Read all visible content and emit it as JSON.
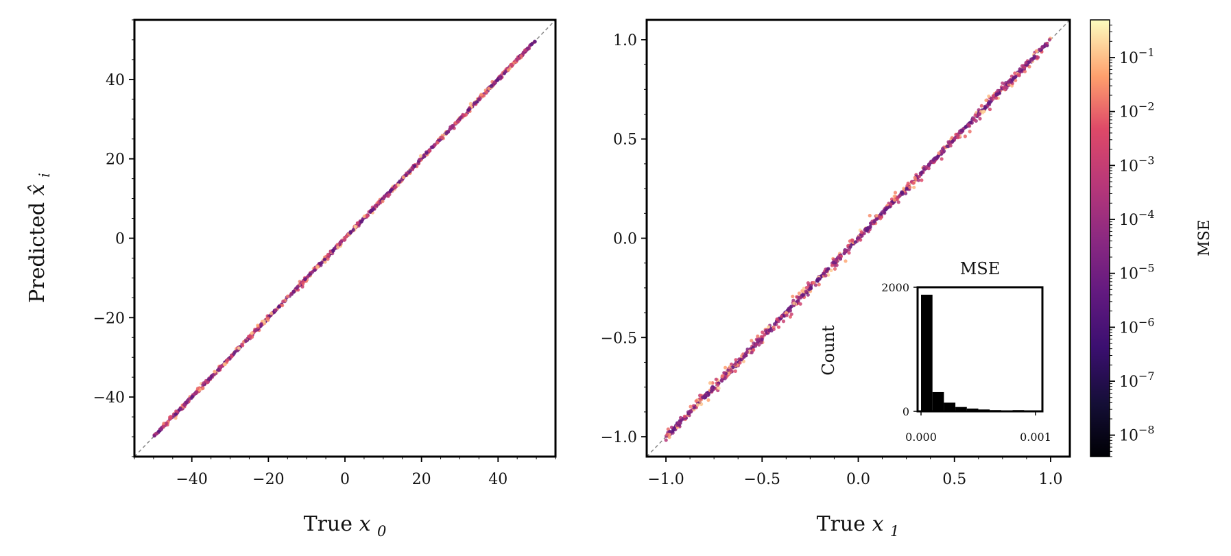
{
  "chart_data": [
    {
      "type": "scatter",
      "panel": "left",
      "xlabel_text": "True",
      "xlabel_var": "x",
      "xlabel_sub": "0",
      "ylabel_text": "Predicted",
      "ylabel_var": "x̂",
      "ylabel_sub": "i",
      "xlim": [
        -55,
        55
      ],
      "ylim": [
        -55,
        55
      ],
      "xticks": [
        -40,
        -20,
        0,
        20,
        40
      ],
      "yticks": [
        -40,
        -20,
        0,
        20,
        40
      ],
      "xtick_labels": [
        "−40",
        "−20",
        "0",
        "20",
        "40"
      ],
      "ytick_labels": [
        "−40",
        "−20",
        "0",
        "20",
        "40"
      ],
      "reference_line": "y = x (gray dashed)",
      "data_range": [
        -50,
        50
      ],
      "points_approx": 2500,
      "color_by": "MSE (log scale)"
    },
    {
      "type": "scatter",
      "panel": "right",
      "xlabel_text": "True",
      "xlabel_var": "x",
      "xlabel_sub": "1",
      "xlim": [
        -1.1,
        1.1
      ],
      "ylim": [
        -1.1,
        1.1
      ],
      "xticks": [
        -1.0,
        -0.5,
        0.0,
        0.5,
        1.0
      ],
      "yticks": [
        -1.0,
        -0.5,
        0.0,
        0.5,
        1.0
      ],
      "xtick_labels": [
        "−1.0",
        "−0.5",
        "0.0",
        "0.5",
        "1.0"
      ],
      "ytick_labels": [
        "−1.0",
        "−0.5",
        "0.0",
        "0.5",
        "1.0"
      ],
      "reference_line": "y = x (gray dashed)",
      "data_range": [
        -1,
        1
      ],
      "points_approx": 2500,
      "color_by": "MSE (log scale)"
    },
    {
      "type": "bar",
      "panel": "inset-histogram",
      "title": "MSE",
      "ylabel": "Count",
      "xtick_labels": [
        "0.000",
        "0.001"
      ],
      "ytick_labels": [
        "0",
        "2000"
      ],
      "xlim": [
        -3e-05,
        0.00106
      ],
      "ylim": [
        0,
        2000
      ],
      "bin_edges": [
        0.0,
        0.0001,
        0.0002,
        0.0003,
        0.0004,
        0.0005,
        0.0006,
        0.0007,
        0.0008,
        0.0009,
        0.001
      ],
      "values": [
        1880,
        310,
        140,
        70,
        45,
        30,
        20,
        15,
        20,
        10
      ],
      "color": "#000000"
    },
    {
      "type": "colorbar",
      "label": "MSE",
      "scale": "log",
      "range": [
        4e-09,
        0.5
      ],
      "tick_exponents": [
        -8,
        -7,
        -6,
        -5,
        -4,
        -3,
        -2,
        -1
      ],
      "tick_base": "10",
      "colormap": "magma"
    }
  ]
}
